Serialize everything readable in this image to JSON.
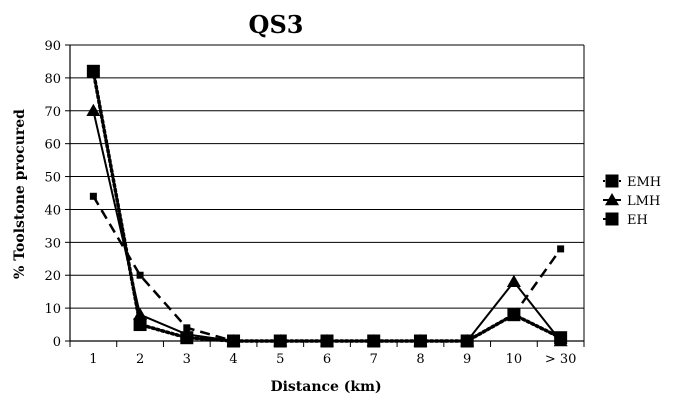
{
  "chart_data": {
    "type": "line",
    "title": "QS3",
    "xlabel": "Distance (km)",
    "ylabel": "% Toolstone procured",
    "categories": [
      "1",
      "2",
      "3",
      "4",
      "5",
      "6",
      "7",
      "8",
      "9",
      "10",
      "> 30"
    ],
    "ylim": [
      0,
      90
    ],
    "yticks": [
      0,
      10,
      20,
      30,
      40,
      50,
      60,
      70,
      80,
      90
    ],
    "grid": true,
    "legend_position": "right",
    "series": [
      {
        "name": "EMH",
        "marker": "square",
        "line": "dotted",
        "values": [
          82,
          5,
          1,
          0,
          0,
          0,
          0,
          0,
          0,
          8,
          1
        ]
      },
      {
        "name": "LMH",
        "marker": "triangle",
        "line": "solid",
        "values": [
          70,
          8,
          2,
          0,
          0,
          0,
          0,
          0,
          0,
          18,
          0
        ]
      },
      {
        "name": "EH",
        "marker": "square-small",
        "line": "dashed",
        "values": [
          44,
          20,
          4,
          0,
          0,
          0,
          0,
          0,
          0,
          8,
          28
        ]
      }
    ]
  }
}
